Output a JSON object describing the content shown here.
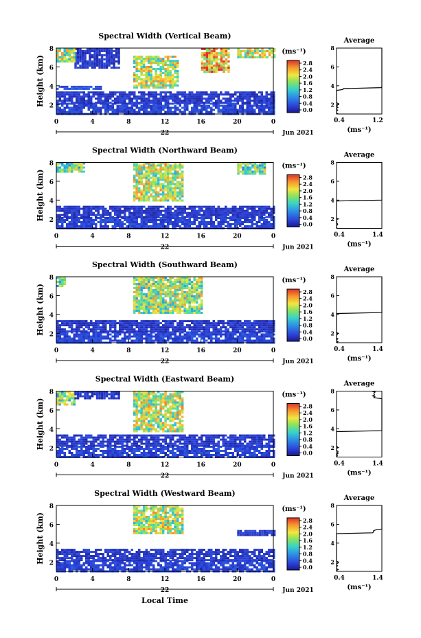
{
  "figure": {
    "xlabel_bottom": "Local Time",
    "date_day": "22",
    "date_month_year": "Jun 2021"
  },
  "chart_data": [
    {
      "type": "heatmap",
      "title": "Spectral Width (Vertical Beam)",
      "ylabel": "Height (km)",
      "xlim": [
        0,
        24
      ],
      "ylim": [
        1,
        8
      ],
      "x_ticks": [
        "0",
        "4",
        "8",
        "12",
        "16",
        "20",
        "0"
      ],
      "y_ticks": [
        "2",
        "4",
        "6",
        "8"
      ],
      "colorbar": {
        "unit": "(ms⁻¹)",
        "ticks": [
          "2.8",
          "2.4",
          "2.0",
          "1.6",
          "1.2",
          "0.8",
          "0.4",
          "0.0"
        ],
        "range": [
          0,
          3
        ]
      },
      "regions": [
        {
          "x": [
            0,
            24
          ],
          "y": [
            1,
            2.2
          ],
          "value": 0.4
        },
        {
          "x": [
            0,
            24
          ],
          "y": [
            2.2,
            3.4
          ],
          "value": 0.3
        },
        {
          "x": [
            0,
            5
          ],
          "y": [
            3.6,
            4.0
          ],
          "value": 0.5
        },
        {
          "x": [
            8.5,
            13.5
          ],
          "y": [
            3.8,
            7.2
          ],
          "value": 1.9
        },
        {
          "x": [
            16,
            19
          ],
          "y": [
            5.5,
            8
          ],
          "value": 2.3
        },
        {
          "x": [
            2,
            7
          ],
          "y": [
            6.0,
            8
          ],
          "value": 0.3
        },
        {
          "x": [
            0,
            2
          ],
          "y": [
            6.5,
            8
          ],
          "value": 1.8
        },
        {
          "x": [
            20,
            24
          ],
          "y": [
            7.0,
            8
          ],
          "value": 2.0
        }
      ],
      "average": {
        "xlim": [
          0.4,
          1.2
        ],
        "x_ticks": [
          "0.4",
          "1.2"
        ],
        "title": "Average",
        "xlabel": "(ms⁻¹)"
      }
    },
    {
      "type": "heatmap",
      "title": "Spectral Width (Northward Beam)",
      "ylabel": "Height (km)",
      "xlim": [
        0,
        24
      ],
      "ylim": [
        1,
        8
      ],
      "x_ticks": [
        "0",
        "4",
        "8",
        "12",
        "16",
        "20",
        "0"
      ],
      "y_ticks": [
        "2",
        "4",
        "6",
        "8"
      ],
      "colorbar": {
        "unit": "(ms⁻¹)",
        "ticks": [
          "2.8",
          "2.4",
          "2.0",
          "1.6",
          "1.2",
          "0.8",
          "0.4",
          "0.0"
        ],
        "range": [
          0,
          3
        ]
      },
      "regions": [
        {
          "x": [
            0,
            24
          ],
          "y": [
            1,
            2.2
          ],
          "value": 0.4
        },
        {
          "x": [
            0,
            24
          ],
          "y": [
            2.2,
            3.4
          ],
          "value": 0.3
        },
        {
          "x": [
            8.5,
            14
          ],
          "y": [
            4.0,
            8
          ],
          "value": 1.9
        },
        {
          "x": [
            0,
            3
          ],
          "y": [
            7.0,
            8
          ],
          "value": 1.6
        },
        {
          "x": [
            20,
            23
          ],
          "y": [
            6.8,
            8
          ],
          "value": 1.6
        }
      ],
      "average": {
        "xlim": [
          0.4,
          1.4
        ],
        "x_ticks": [
          "0.4",
          "1.4"
        ],
        "title": "Average",
        "xlabel": "(ms⁻¹)"
      }
    },
    {
      "type": "heatmap",
      "title": "Spectral Width (Southward Beam)",
      "ylabel": "Height (km)",
      "xlim": [
        0,
        24
      ],
      "ylim": [
        1,
        8
      ],
      "x_ticks": [
        "0",
        "4",
        "8",
        "12",
        "16",
        "20",
        "0"
      ],
      "y_ticks": [
        "2",
        "4",
        "6",
        "8"
      ],
      "colorbar": {
        "unit": "(ms⁻¹)",
        "ticks": [
          "2.8",
          "2.4",
          "2.0",
          "1.6",
          "1.2",
          "0.8",
          "0.4",
          "0.0"
        ],
        "range": [
          0,
          3
        ]
      },
      "regions": [
        {
          "x": [
            0,
            24
          ],
          "y": [
            1,
            2.2
          ],
          "value": 0.4
        },
        {
          "x": [
            0,
            24
          ],
          "y": [
            2.2,
            3.4
          ],
          "value": 0.3
        },
        {
          "x": [
            8.5,
            16
          ],
          "y": [
            4.2,
            8
          ],
          "value": 1.8
        },
        {
          "x": [
            0,
            1
          ],
          "y": [
            7.0,
            8
          ],
          "value": 1.4
        }
      ],
      "average": {
        "xlim": [
          0.4,
          1.4
        ],
        "x_ticks": [
          "0.4",
          "1.4"
        ],
        "title": "Average",
        "xlabel": "(ms⁻¹)"
      }
    },
    {
      "type": "heatmap",
      "title": "Spectral Width (Eastward Beam)",
      "ylabel": "Height (km)",
      "xlim": [
        0,
        24
      ],
      "ylim": [
        1,
        8
      ],
      "x_ticks": [
        "0",
        "4",
        "8",
        "12",
        "16",
        "20",
        "0"
      ],
      "y_ticks": [
        "2",
        "4",
        "6",
        "8"
      ],
      "colorbar": {
        "unit": "(ms⁻¹)",
        "ticks": [
          "2.8",
          "2.4",
          "2.0",
          "1.6",
          "1.2",
          "0.8",
          "0.4",
          "0.0"
        ],
        "range": [
          0,
          3
        ]
      },
      "regions": [
        {
          "x": [
            0,
            24
          ],
          "y": [
            1,
            2.2
          ],
          "value": 0.4
        },
        {
          "x": [
            0,
            24
          ],
          "y": [
            2.2,
            3.4
          ],
          "value": 0.3
        },
        {
          "x": [
            8.5,
            14
          ],
          "y": [
            3.8,
            8
          ],
          "value": 1.9
        },
        {
          "x": [
            0,
            2
          ],
          "y": [
            6.5,
            8
          ],
          "value": 1.6
        },
        {
          "x": [
            2,
            7
          ],
          "y": [
            7.2,
            8
          ],
          "value": 0.3
        }
      ],
      "average": {
        "xlim": [
          0.4,
          1.4
        ],
        "x_ticks": [
          "0.4",
          "1.4"
        ],
        "title": "Average",
        "xlabel": "(ms⁻¹)"
      }
    },
    {
      "type": "heatmap",
      "title": "Spectral Width (Westward Beam)",
      "ylabel": "Height (km)",
      "xlim": [
        0,
        24
      ],
      "ylim": [
        1,
        8
      ],
      "x_ticks": [
        "0",
        "4",
        "8",
        "12",
        "16",
        "20",
        "0"
      ],
      "y_ticks": [
        "2",
        "4",
        "6",
        "8"
      ],
      "colorbar": {
        "unit": "(ms⁻¹)",
        "ticks": [
          "2.8",
          "2.4",
          "2.0",
          "1.6",
          "1.2",
          "0.8",
          "0.4",
          "0.0"
        ],
        "range": [
          0,
          3
        ]
      },
      "regions": [
        {
          "x": [
            0,
            24
          ],
          "y": [
            1,
            2.2
          ],
          "value": 0.4
        },
        {
          "x": [
            0,
            24
          ],
          "y": [
            2.2,
            3.4
          ],
          "value": 0.3
        },
        {
          "x": [
            8.5,
            14
          ],
          "y": [
            5.0,
            8
          ],
          "value": 1.9
        },
        {
          "x": [
            20,
            24
          ],
          "y": [
            4.8,
            5.4
          ],
          "value": 0.3
        }
      ],
      "average": {
        "xlim": [
          0.4,
          1.4
        ],
        "x_ticks": [
          "0.4",
          "1.4"
        ],
        "title": "Average",
        "xlabel": "(ms⁻¹)"
      }
    }
  ]
}
